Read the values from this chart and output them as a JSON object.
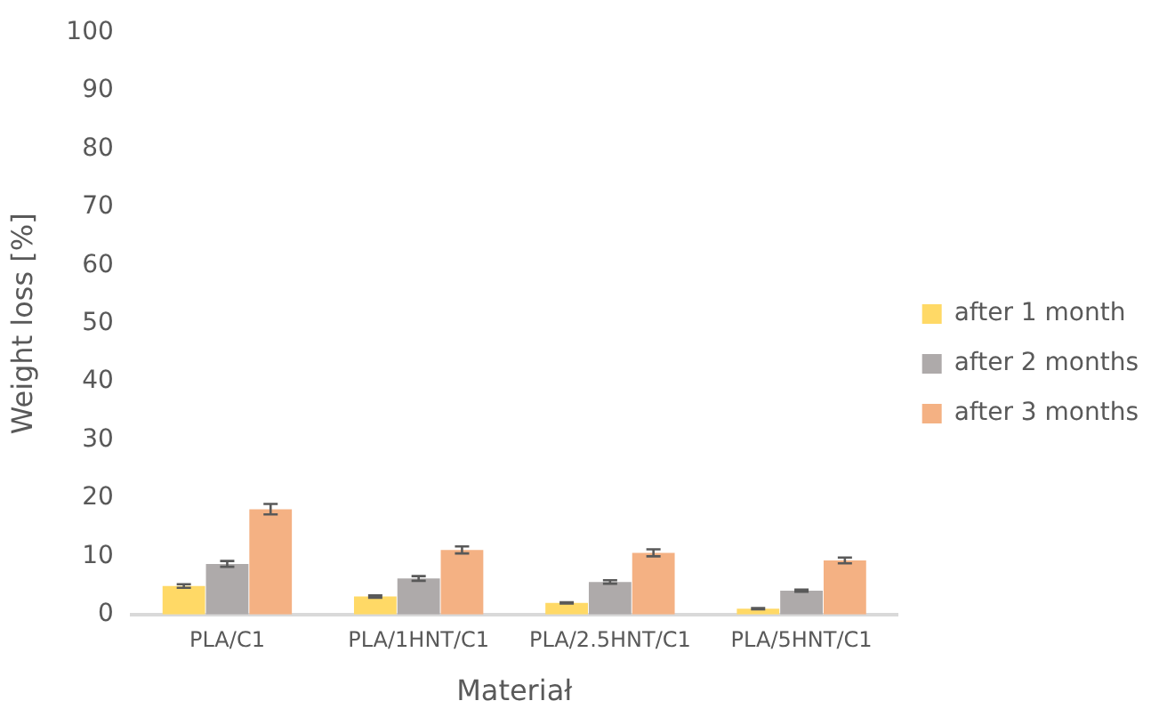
{
  "chart_data": {
    "type": "bar",
    "xlabel": "Materiał",
    "ylabel": "Weight loss [%]",
    "categories": [
      "PLA/C1",
      "PLA/1HNT/C1",
      "PLA/2.5HNT/C1",
      "PLA/5HNT/C1"
    ],
    "series": [
      {
        "name": "after 1 month",
        "color": "#ffd966",
        "values": [
          4.9,
          3.1,
          2.0,
          1.0
        ],
        "errors": [
          0.3,
          0.2,
          0.1,
          0.1
        ]
      },
      {
        "name": "after 2 months",
        "color": "#aeaaaa",
        "values": [
          8.7,
          6.2,
          5.6,
          4.1
        ],
        "errors": [
          0.5,
          0.4,
          0.3,
          0.2
        ]
      },
      {
        "name": "after 3 months",
        "color": "#f4b183",
        "values": [
          18.1,
          11.1,
          10.6,
          9.3
        ],
        "errors": [
          0.9,
          0.6,
          0.6,
          0.5
        ]
      }
    ],
    "ylim": [
      0,
      100
    ],
    "yticks": [
      0,
      10,
      20,
      30,
      40,
      50,
      60,
      70,
      80,
      90,
      100
    ],
    "grid": false,
    "legend": "right"
  }
}
